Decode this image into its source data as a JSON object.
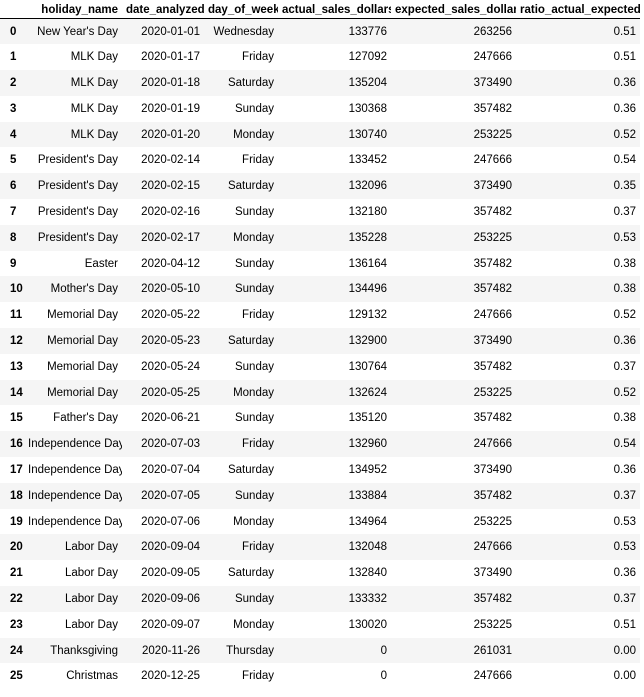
{
  "columns": [
    "",
    "holiday_name",
    "date_analyzed",
    "day_of_week",
    "actual_sales_dollars",
    "expected_sales_dollars",
    "ratio_actual_expected"
  ],
  "rows": [
    [
      "0",
      "New Year's Day",
      "2020-01-01",
      "Wednesday",
      "133776",
      "263256",
      "0.51"
    ],
    [
      "1",
      "MLK Day",
      "2020-01-17",
      "Friday",
      "127092",
      "247666",
      "0.51"
    ],
    [
      "2",
      "MLK Day",
      "2020-01-18",
      "Saturday",
      "135204",
      "373490",
      "0.36"
    ],
    [
      "3",
      "MLK Day",
      "2020-01-19",
      "Sunday",
      "130368",
      "357482",
      "0.36"
    ],
    [
      "4",
      "MLK Day",
      "2020-01-20",
      "Monday",
      "130740",
      "253225",
      "0.52"
    ],
    [
      "5",
      "President's Day",
      "2020-02-14",
      "Friday",
      "133452",
      "247666",
      "0.54"
    ],
    [
      "6",
      "President's Day",
      "2020-02-15",
      "Saturday",
      "132096",
      "373490",
      "0.35"
    ],
    [
      "7",
      "President's Day",
      "2020-02-16",
      "Sunday",
      "132180",
      "357482",
      "0.37"
    ],
    [
      "8",
      "President's Day",
      "2020-02-17",
      "Monday",
      "135228",
      "253225",
      "0.53"
    ],
    [
      "9",
      "Easter",
      "2020-04-12",
      "Sunday",
      "136164",
      "357482",
      "0.38"
    ],
    [
      "10",
      "Mother's Day",
      "2020-05-10",
      "Sunday",
      "134496",
      "357482",
      "0.38"
    ],
    [
      "11",
      "Memorial Day",
      "2020-05-22",
      "Friday",
      "129132",
      "247666",
      "0.52"
    ],
    [
      "12",
      "Memorial Day",
      "2020-05-23",
      "Saturday",
      "132900",
      "373490",
      "0.36"
    ],
    [
      "13",
      "Memorial Day",
      "2020-05-24",
      "Sunday",
      "130764",
      "357482",
      "0.37"
    ],
    [
      "14",
      "Memorial Day",
      "2020-05-25",
      "Monday",
      "132624",
      "253225",
      "0.52"
    ],
    [
      "15",
      "Father's Day",
      "2020-06-21",
      "Sunday",
      "135120",
      "357482",
      "0.38"
    ],
    [
      "16",
      "Independence Day",
      "2020-07-03",
      "Friday",
      "132960",
      "247666",
      "0.54"
    ],
    [
      "17",
      "Independence Day",
      "2020-07-04",
      "Saturday",
      "134952",
      "373490",
      "0.36"
    ],
    [
      "18",
      "Independence Day",
      "2020-07-05",
      "Sunday",
      "133884",
      "357482",
      "0.37"
    ],
    [
      "19",
      "Independence Day",
      "2020-07-06",
      "Monday",
      "134964",
      "253225",
      "0.53"
    ],
    [
      "20",
      "Labor Day",
      "2020-09-04",
      "Friday",
      "132048",
      "247666",
      "0.53"
    ],
    [
      "21",
      "Labor Day",
      "2020-09-05",
      "Saturday",
      "132840",
      "373490",
      "0.36"
    ],
    [
      "22",
      "Labor Day",
      "2020-09-06",
      "Sunday",
      "133332",
      "357482",
      "0.37"
    ],
    [
      "23",
      "Labor Day",
      "2020-09-07",
      "Monday",
      "130020",
      "253225",
      "0.51"
    ],
    [
      "24",
      "Thanksgiving",
      "2020-11-26",
      "Thursday",
      "0",
      "261031",
      "0.00"
    ],
    [
      "25",
      "Christmas",
      "2020-12-25",
      "Friday",
      "0",
      "247666",
      "0.00"
    ]
  ]
}
